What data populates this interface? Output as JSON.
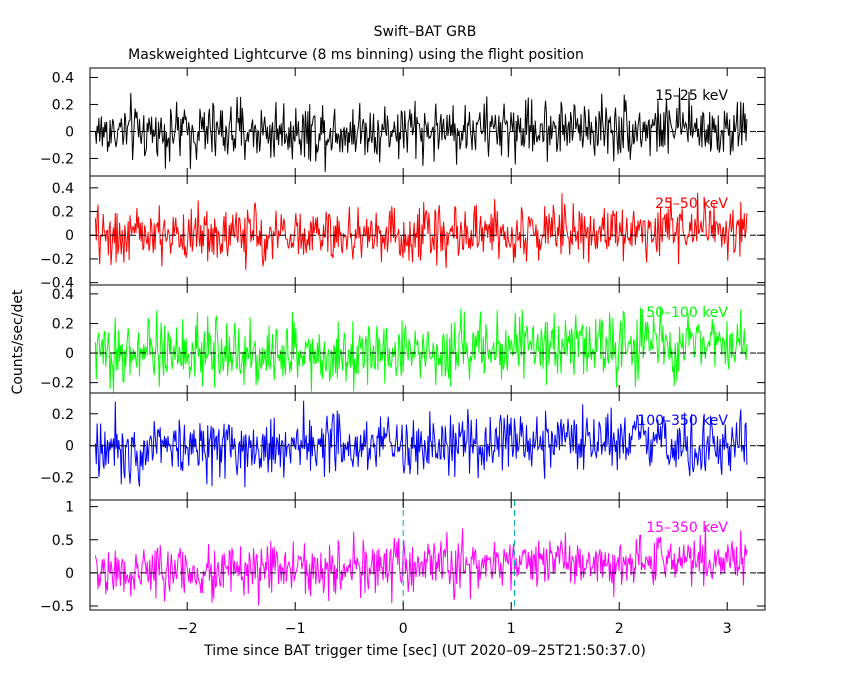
{
  "title": "Swift–BAT GRB",
  "subtitle": "Maskweighted Lightcurve (8 ms binning) using the flight position",
  "xlabel": "Time since BAT trigger time [sec] (UT 2020–09–25T21:50:37.0)",
  "ylabel": "Counts/sec/det",
  "chart_data": {
    "type": "line",
    "xlim": [
      -2.9,
      3.35
    ],
    "x_ticks": [
      -2,
      -1,
      0,
      1,
      2,
      3
    ],
    "x_tick_labels": [
      "−2",
      "−1",
      "0",
      "1",
      "2",
      "3"
    ],
    "data_range": [
      -2.85,
      3.18
    ],
    "bin_sec": 0.008,
    "vlines": [
      0,
      1.03
    ],
    "panels": [
      {
        "name": "15–25 keV",
        "color": "#000000",
        "ylim": [
          -0.33,
          0.47
        ],
        "yticks": [
          -0.2,
          0,
          0.2,
          0.4
        ],
        "ytick_labels": [
          "−0.2",
          "0",
          "0.2",
          "0.4"
        ],
        "level": [
          0.0,
          0.0,
          0.01,
          0.03,
          0.02
        ],
        "noise": 0.11
      },
      {
        "name": "25–50 keV",
        "color": "#ff0000",
        "ylim": [
          -0.42,
          0.5
        ],
        "yticks": [
          -0.4,
          -0.2,
          0,
          0.2,
          0.4
        ],
        "ytick_labels": [
          "−0.4",
          "−0.2",
          "0",
          "0.2",
          "0.4"
        ],
        "level": [
          0.0,
          0.0,
          0.01,
          0.05,
          0.05
        ],
        "noise": 0.12
      },
      {
        "name": "50–100 keV",
        "color": "#00ff00",
        "ylim": [
          -0.27,
          0.46
        ],
        "yticks": [
          -0.2,
          0,
          0.2,
          0.4
        ],
        "ytick_labels": [
          "−0.2",
          "0",
          "0.2",
          "0.4"
        ],
        "level": [
          0.0,
          0.0,
          0.02,
          0.06,
          0.07
        ],
        "noise": 0.11
      },
      {
        "name": "100–350 keV",
        "color": "#0000ff",
        "ylim": [
          -0.34,
          0.33
        ],
        "yticks": [
          -0.2,
          0,
          0.2
        ],
        "ytick_labels": [
          "−0.2",
          "0",
          "0.2"
        ],
        "level": [
          0.0,
          0.0,
          0.0,
          0.01,
          0.01
        ],
        "noise": 0.1
      },
      {
        "name": "15–350 keV",
        "color": "#ff00ff",
        "ylim": [
          -0.56,
          1.1
        ],
        "yticks": [
          -0.5,
          0,
          0.5,
          1
        ],
        "ytick_labels": [
          "−0.5",
          "0",
          "0.5",
          "1"
        ],
        "level": [
          0.0,
          0.03,
          0.08,
          0.2,
          0.18
        ],
        "noise": 0.2
      }
    ]
  }
}
